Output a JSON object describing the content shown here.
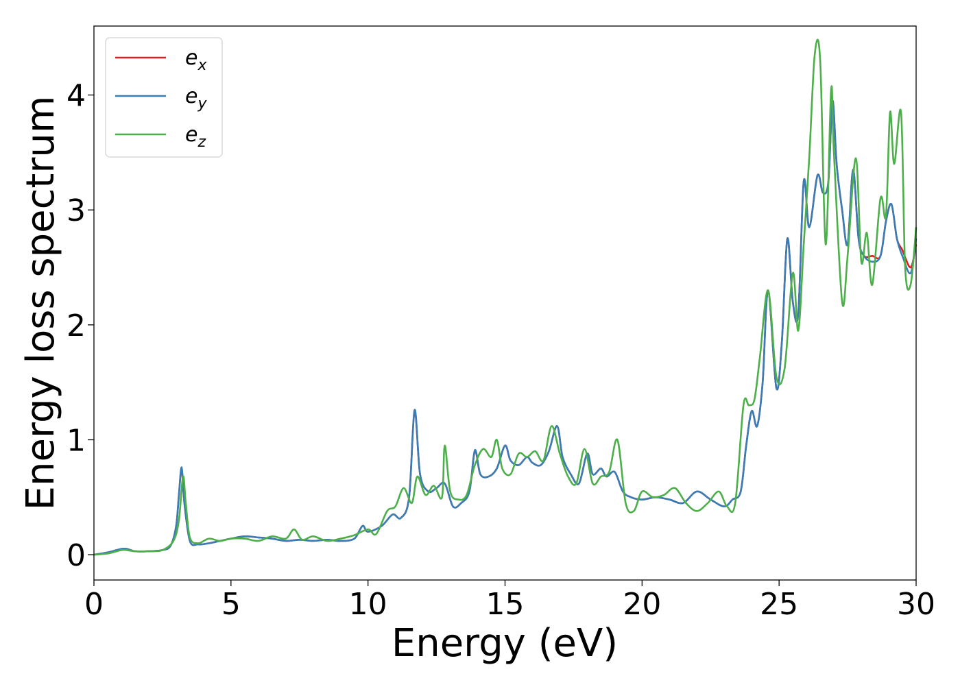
{
  "chart_data": {
    "type": "line",
    "title": "",
    "xlabel": "Energy (eV)",
    "ylabel": "Energy loss spectrum",
    "xlim": [
      0,
      30
    ],
    "ylim": [
      -0.22,
      4.6
    ],
    "xticks": [
      0,
      5,
      10,
      15,
      20,
      25,
      30
    ],
    "yticks": [
      0,
      1,
      2,
      3,
      4
    ],
    "grid": false,
    "legend_position": "top-left",
    "series": [
      {
        "name": "e_x",
        "label_main": "e",
        "label_sub": "x",
        "color": "#e41a1c",
        "x": [
          0,
          0.5,
          1.0,
          1.2,
          1.5,
          2.0,
          2.5,
          2.8,
          3.0,
          3.1,
          3.2,
          3.3,
          3.5,
          3.8,
          4.2,
          4.6,
          5.0,
          5.5,
          6.0,
          6.5,
          7.0,
          7.5,
          8.0,
          8.5,
          9.0,
          9.5,
          9.8,
          10.0,
          10.5,
          10.9,
          11.2,
          11.5,
          11.7,
          11.9,
          12.2,
          12.5,
          12.8,
          13.1,
          13.4,
          13.7,
          13.9,
          14.1,
          14.4,
          14.7,
          15.0,
          15.2,
          15.5,
          15.8,
          16.0,
          16.3,
          16.6,
          16.9,
          17.1,
          17.4,
          17.7,
          18.0,
          18.2,
          18.5,
          18.7,
          19.0,
          19.3,
          19.6,
          20.0,
          20.5,
          21.0,
          21.5,
          22.0,
          22.5,
          23.0,
          23.3,
          23.6,
          23.8,
          24.0,
          24.2,
          24.4,
          24.6,
          24.9,
          25.1,
          25.3,
          25.5,
          25.7,
          25.9,
          26.1,
          26.4,
          26.6,
          26.8,
          26.95,
          27.1,
          27.3,
          27.5,
          27.7,
          27.9,
          28.1,
          28.4,
          28.7,
          28.9,
          29.1,
          29.3,
          29.5,
          29.8,
          30.0
        ],
        "y": [
          0,
          0.02,
          0.05,
          0.05,
          0.03,
          0.03,
          0.04,
          0.08,
          0.25,
          0.52,
          0.75,
          0.45,
          0.12,
          0.09,
          0.1,
          0.12,
          0.14,
          0.16,
          0.15,
          0.14,
          0.12,
          0.13,
          0.12,
          0.13,
          0.12,
          0.14,
          0.25,
          0.2,
          0.25,
          0.35,
          0.32,
          0.5,
          1.25,
          0.7,
          0.55,
          0.58,
          0.62,
          0.42,
          0.45,
          0.55,
          0.9,
          0.7,
          0.68,
          0.75,
          0.95,
          0.82,
          0.78,
          0.85,
          0.8,
          0.78,
          0.9,
          1.12,
          0.85,
          0.7,
          0.62,
          0.88,
          0.7,
          0.75,
          0.68,
          0.72,
          0.55,
          0.5,
          0.48,
          0.5,
          0.48,
          0.45,
          0.55,
          0.48,
          0.42,
          0.48,
          0.55,
          0.95,
          1.25,
          1.12,
          1.5,
          2.3,
          1.45,
          1.85,
          2.75,
          2.2,
          2.1,
          3.25,
          2.85,
          3.3,
          3.15,
          3.25,
          3.95,
          3.4,
          3.0,
          2.7,
          3.35,
          2.75,
          2.6,
          2.6,
          2.6,
          2.9,
          3.05,
          2.75,
          2.65,
          2.5,
          2.7
        ]
      },
      {
        "name": "e_y",
        "label_main": "e",
        "label_sub": "y",
        "color": "#377eb8",
        "x": [
          0,
          0.5,
          1.0,
          1.2,
          1.5,
          2.0,
          2.5,
          2.8,
          3.0,
          3.1,
          3.2,
          3.3,
          3.5,
          3.8,
          4.2,
          4.6,
          5.0,
          5.5,
          6.0,
          6.5,
          7.0,
          7.5,
          8.0,
          8.5,
          9.0,
          9.5,
          9.8,
          10.0,
          10.5,
          10.9,
          11.2,
          11.5,
          11.7,
          11.9,
          12.2,
          12.5,
          12.8,
          13.1,
          13.4,
          13.7,
          13.9,
          14.1,
          14.4,
          14.7,
          15.0,
          15.2,
          15.5,
          15.8,
          16.0,
          16.3,
          16.6,
          16.9,
          17.1,
          17.4,
          17.7,
          18.0,
          18.2,
          18.5,
          18.7,
          19.0,
          19.3,
          19.6,
          20.0,
          20.5,
          21.0,
          21.5,
          22.0,
          22.5,
          23.0,
          23.3,
          23.6,
          23.8,
          24.0,
          24.2,
          24.4,
          24.6,
          24.9,
          25.1,
          25.3,
          25.5,
          25.7,
          25.9,
          26.1,
          26.4,
          26.6,
          26.8,
          26.95,
          27.1,
          27.3,
          27.5,
          27.7,
          27.9,
          28.1,
          28.4,
          28.7,
          28.9,
          29.1,
          29.3,
          29.5,
          29.8,
          30.0
        ],
        "y": [
          0,
          0.02,
          0.05,
          0.05,
          0.03,
          0.03,
          0.04,
          0.08,
          0.25,
          0.52,
          0.76,
          0.45,
          0.12,
          0.09,
          0.1,
          0.12,
          0.14,
          0.16,
          0.15,
          0.14,
          0.12,
          0.13,
          0.12,
          0.13,
          0.12,
          0.14,
          0.25,
          0.2,
          0.25,
          0.35,
          0.32,
          0.5,
          1.26,
          0.7,
          0.55,
          0.58,
          0.62,
          0.42,
          0.45,
          0.55,
          0.91,
          0.7,
          0.68,
          0.75,
          0.95,
          0.82,
          0.78,
          0.85,
          0.8,
          0.78,
          0.9,
          1.12,
          0.85,
          0.7,
          0.62,
          0.88,
          0.7,
          0.75,
          0.68,
          0.72,
          0.55,
          0.5,
          0.48,
          0.5,
          0.48,
          0.45,
          0.55,
          0.48,
          0.42,
          0.48,
          0.55,
          0.95,
          1.25,
          1.12,
          1.5,
          2.3,
          1.45,
          1.85,
          2.75,
          2.2,
          2.1,
          3.25,
          2.85,
          3.3,
          3.15,
          3.25,
          3.95,
          3.4,
          3.0,
          2.7,
          3.35,
          2.75,
          2.6,
          2.55,
          2.6,
          2.9,
          3.05,
          2.75,
          2.6,
          2.45,
          2.75
        ]
      },
      {
        "name": "e_z",
        "label_main": "e",
        "label_sub": "z",
        "color": "#4daf4a",
        "x": [
          0,
          0.5,
          1.0,
          1.2,
          1.5,
          2.0,
          2.5,
          2.9,
          3.1,
          3.25,
          3.35,
          3.5,
          3.8,
          4.2,
          4.6,
          5.0,
          5.5,
          6.0,
          6.5,
          7.0,
          7.3,
          7.6,
          8.0,
          8.5,
          9.0,
          9.5,
          10.0,
          10.3,
          10.7,
          11.0,
          11.3,
          11.6,
          11.8,
          12.1,
          12.4,
          12.7,
          12.8,
          13.0,
          13.3,
          13.6,
          13.9,
          14.2,
          14.5,
          14.7,
          14.9,
          15.2,
          15.5,
          15.8,
          16.1,
          16.4,
          16.7,
          17.0,
          17.3,
          17.6,
          17.9,
          18.2,
          18.5,
          18.8,
          19.1,
          19.4,
          19.7,
          20.0,
          20.4,
          20.8,
          21.2,
          21.6,
          22.0,
          22.4,
          22.8,
          23.1,
          23.4,
          23.7,
          23.9,
          24.1,
          24.3,
          24.6,
          24.9,
          25.2,
          25.5,
          25.7,
          25.9,
          26.1,
          26.3,
          26.5,
          26.7,
          26.9,
          27.0,
          27.3,
          27.5,
          27.8,
          28.0,
          28.2,
          28.4,
          28.7,
          28.9,
          29.05,
          29.2,
          29.45,
          29.6,
          29.8,
          30.0
        ],
        "y": [
          0,
          0.01,
          0.04,
          0.04,
          0.03,
          0.03,
          0.04,
          0.12,
          0.3,
          0.68,
          0.45,
          0.15,
          0.1,
          0.14,
          0.12,
          0.14,
          0.14,
          0.12,
          0.16,
          0.14,
          0.22,
          0.13,
          0.16,
          0.12,
          0.14,
          0.17,
          0.22,
          0.18,
          0.38,
          0.42,
          0.58,
          0.45,
          0.68,
          0.52,
          0.6,
          0.5,
          0.95,
          0.55,
          0.48,
          0.52,
          0.78,
          0.92,
          0.85,
          1.0,
          0.75,
          0.7,
          0.88,
          0.85,
          0.9,
          0.82,
          1.12,
          0.88,
          0.68,
          0.62,
          0.92,
          0.62,
          0.68,
          0.72,
          1.0,
          0.45,
          0.38,
          0.55,
          0.5,
          0.52,
          0.58,
          0.45,
          0.38,
          0.45,
          0.55,
          0.42,
          0.45,
          1.3,
          1.3,
          1.35,
          1.72,
          2.3,
          1.55,
          1.62,
          2.45,
          1.95,
          2.7,
          3.45,
          4.35,
          4.3,
          2.7,
          4.05,
          3.5,
          2.2,
          2.6,
          3.45,
          2.55,
          2.8,
          2.35,
          3.1,
          2.95,
          3.85,
          3.4,
          3.85,
          2.5,
          2.35,
          2.85
        ]
      }
    ]
  }
}
